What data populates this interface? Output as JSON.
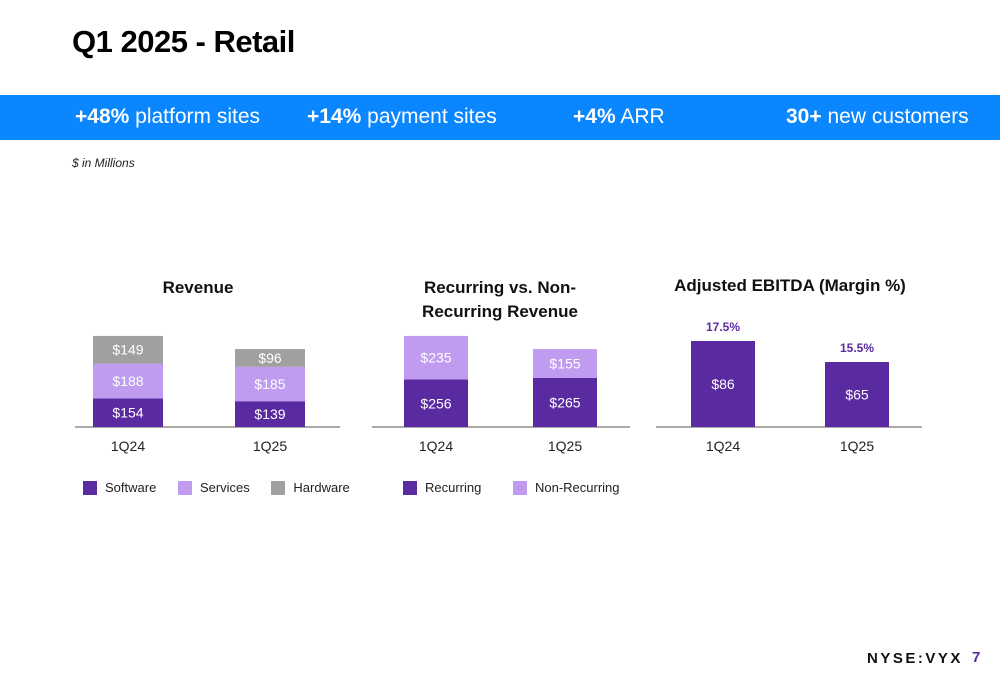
{
  "page_title": "Q1 2025 - Retail",
  "banner": {
    "stats": [
      {
        "value": "+48%",
        "label": "platform sites"
      },
      {
        "value": "+14%",
        "label": "payment sites"
      },
      {
        "value": "+4%",
        "label": "ARR"
      },
      {
        "value": "30+",
        "label": "new customers"
      }
    ]
  },
  "units_note": "$ in Millions",
  "footer": {
    "ticker": "NYSE:VYX",
    "page_number": "7"
  },
  "colors": {
    "banner": "#0a86ff",
    "software": "#5a2aa1",
    "services": "#c09cf0",
    "hardware": "#a0a0a0",
    "recurring": "#5a2aa1",
    "non_recurring": "#c09cf0",
    "ebitda": "#5a2aa1",
    "margin_label": "#5a2aa1"
  },
  "chart_data": [
    {
      "type": "bar",
      "stacked": true,
      "title": "Revenue",
      "categories": [
        "1Q24",
        "1Q25"
      ],
      "series": [
        {
          "name": "Software",
          "values": [
            154,
            139
          ],
          "labels": [
            "$154",
            "$139"
          ]
        },
        {
          "name": "Services",
          "values": [
            188,
            185
          ],
          "labels": [
            "$188",
            "$185"
          ]
        },
        {
          "name": "Hardware",
          "values": [
            149,
            96
          ],
          "labels": [
            "$149",
            "$96"
          ]
        }
      ],
      "legend": "bottom"
    },
    {
      "type": "bar",
      "stacked": true,
      "title": "Recurring vs. Non-Recurring Revenue",
      "categories": [
        "1Q24",
        "1Q25"
      ],
      "series": [
        {
          "name": "Recurring",
          "values": [
            256,
            265
          ],
          "labels": [
            "$256",
            "$265"
          ]
        },
        {
          "name": "Non-Recurring",
          "values": [
            235,
            155
          ],
          "labels": [
            "$235",
            "$155"
          ]
        }
      ],
      "legend": "bottom"
    },
    {
      "type": "bar",
      "stacked": false,
      "title": "Adjusted EBITDA (Margin %)",
      "categories": [
        "1Q24",
        "1Q25"
      ],
      "series": [
        {
          "values": [
            86,
            65
          ],
          "labels": [
            "$86",
            "$65"
          ],
          "margins": [
            "17.5%",
            "15.5%"
          ]
        }
      ]
    }
  ]
}
